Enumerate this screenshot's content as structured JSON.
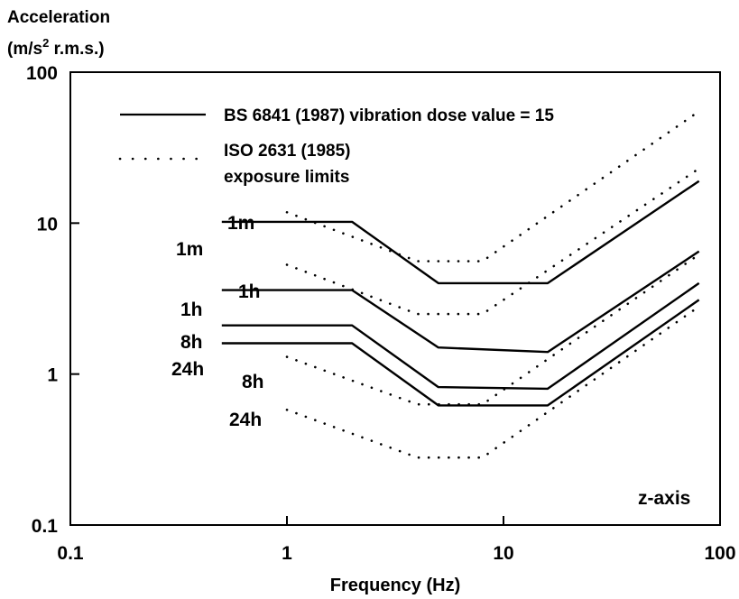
{
  "chart_data": {
    "type": "line",
    "ylabel_line1": "Acceleration",
    "ylabel_line2_pre": "(m/s",
    "ylabel_line2_sup": "2",
    "ylabel_line2_post": " r.m.s.)",
    "xlabel": "Frequency (Hz)",
    "x_scale": "log",
    "y_scale": "log",
    "xlim": [
      0.1,
      100
    ],
    "ylim": [
      0.1,
      100
    ],
    "x_ticks": [
      {
        "value": 0.1,
        "label": "0.1"
      },
      {
        "value": 1,
        "label": "1"
      },
      {
        "value": 10,
        "label": "10"
      },
      {
        "value": 100,
        "label": "100"
      }
    ],
    "y_ticks": [
      {
        "value": 0.1,
        "label": "0.1"
      },
      {
        "value": 1,
        "label": "1"
      },
      {
        "value": 10,
        "label": "10"
      },
      {
        "value": 100,
        "label": "100"
      }
    ],
    "grid": false,
    "legend_position": "top",
    "legend": [
      {
        "label": "BS 6841 (1987) vibration dose value = 15",
        "style": "solid"
      },
      {
        "label_lines": [
          "ISO 2631 (1985)",
          "exposure limits"
        ],
        "style": "dotted"
      }
    ],
    "annotation": "z-axis",
    "series": [
      {
        "name": "1m",
        "group": "BS 6841",
        "style": "solid",
        "x": [
          0.5,
          2,
          5,
          16,
          80
        ],
        "y": [
          10.2,
          10.2,
          4.0,
          4.0,
          19.0
        ]
      },
      {
        "name": "1h",
        "group": "BS 6841",
        "style": "solid",
        "x": [
          0.5,
          2,
          5,
          16,
          80
        ],
        "y": [
          3.6,
          3.6,
          1.5,
          1.4,
          6.5
        ]
      },
      {
        "name": "8h",
        "group": "BS 6841",
        "style": "solid",
        "x": [
          0.5,
          2,
          5,
          16,
          80
        ],
        "y": [
          2.1,
          2.1,
          0.82,
          0.8,
          4.0
        ]
      },
      {
        "name": "24h",
        "group": "BS 6841",
        "style": "solid",
        "x": [
          0.5,
          2,
          5,
          16,
          80
        ],
        "y": [
          1.6,
          1.6,
          0.62,
          0.62,
          3.1
        ]
      },
      {
        "name": "1m",
        "group": "ISO 2631",
        "style": "dotted",
        "x": [
          1,
          4,
          8,
          80
        ],
        "y": [
          11.8,
          5.6,
          5.6,
          55
        ]
      },
      {
        "name": "1h",
        "group": "ISO 2631",
        "style": "dotted",
        "x": [
          1,
          4,
          8,
          80
        ],
        "y": [
          5.3,
          2.5,
          2.5,
          23
        ]
      },
      {
        "name": "8h",
        "group": "ISO 2631",
        "style": "dotted",
        "x": [
          1,
          4,
          8,
          80
        ],
        "y": [
          1.3,
          0.63,
          0.63,
          6.2
        ]
      },
      {
        "name": "24h",
        "group": "ISO 2631",
        "style": "dotted",
        "x": [
          1,
          4,
          8,
          80
        ],
        "y": [
          0.58,
          0.28,
          0.28,
          2.8
        ]
      }
    ]
  }
}
